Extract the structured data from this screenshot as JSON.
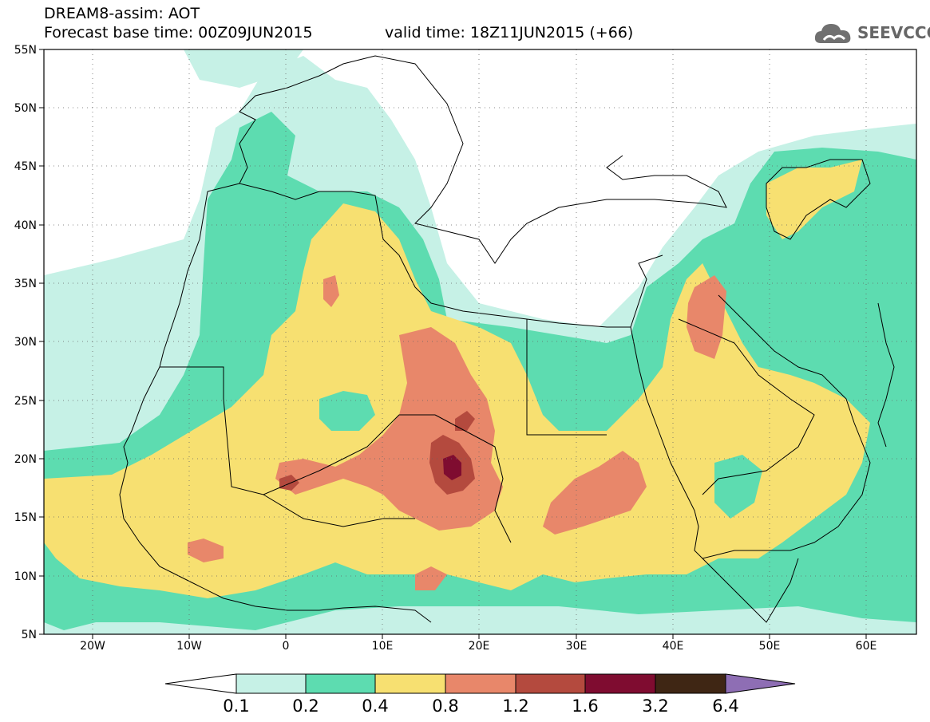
{
  "header": {
    "title": "DREAM8-assim: AOT",
    "base_time": "Forecast base time: 00Z09JUN2015",
    "valid_time": "valid time: 18Z11JUN2015 (+66)"
  },
  "logo": {
    "text": "SEEVCCC",
    "icon": "cloud-icon"
  },
  "map": {
    "lon_range": [
      -25,
      65
    ],
    "lat_range": [
      5,
      55
    ],
    "lon_ticks": [
      "20W",
      "10W",
      "0",
      "10E",
      "20E",
      "30E",
      "40E",
      "50E",
      "60E"
    ],
    "lat_ticks": [
      "55N",
      "50N",
      "45N",
      "40N",
      "35N",
      "30N",
      "25N",
      "20N",
      "15N",
      "10N",
      "5N"
    ],
    "grid": "dotted"
  },
  "colorbar": {
    "levels": [
      "0.1",
      "0.2",
      "0.4",
      "0.8",
      "1.2",
      "1.6",
      "3.2",
      "6.4"
    ],
    "colors": [
      "#ffffff",
      "#c6f1e6",
      "#5ddcb0",
      "#f7e071",
      "#e8876a",
      "#b44a3e",
      "#7f0c30",
      "#3f2614",
      "#8e6eb4"
    ]
  }
}
